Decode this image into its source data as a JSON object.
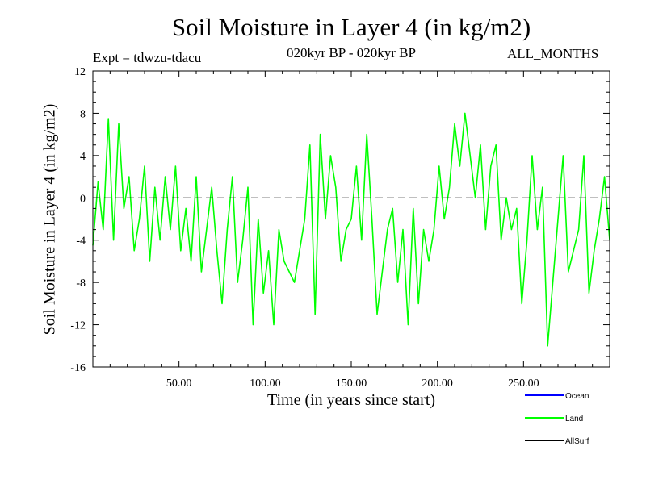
{
  "chart_data": {
    "type": "line",
    "title": "Soil Moisture in Layer 4 (in kg/m2)",
    "subtitle_left": "Expt = tdwzu-tdacu",
    "subtitle_center": "020kyr BP - 020kyr BP",
    "subtitle_right": "ALL_MONTHS",
    "xlabel": "Time (in years since start)",
    "ylabel": "Soil Moisture in Layer 4 (in kg/m2)",
    "xlim": [
      0,
      300
    ],
    "ylim": [
      -16,
      12
    ],
    "x_ticks": [
      50,
      100,
      150,
      200,
      250
    ],
    "x_tick_labels": [
      "50.00",
      "100.00",
      "150.00",
      "200.00",
      "250.00"
    ],
    "y_ticks": [
      -16,
      -12,
      -8,
      -4,
      0,
      4,
      8,
      12
    ],
    "y_tick_labels": [
      "-16",
      "-12",
      "-8",
      "-4",
      "0",
      "4",
      "8",
      "12"
    ],
    "zero_line": "dashed",
    "grid": false,
    "legend_position": "bottom-right",
    "series": [
      {
        "name": "Ocean",
        "color": "#0000ff",
        "values": []
      },
      {
        "name": "Land",
        "color": "#00ff00",
        "x": [
          0,
          3,
          6,
          9,
          12,
          15,
          18,
          21,
          24,
          27,
          30,
          33,
          36,
          39,
          42,
          45,
          48,
          51,
          54,
          57,
          60,
          63,
          66,
          69,
          72,
          75,
          78,
          81,
          84,
          87,
          90,
          93,
          96,
          99,
          102,
          105,
          108,
          111,
          114,
          117,
          120,
          123,
          126,
          129,
          132,
          135,
          138,
          141,
          144,
          147,
          150,
          153,
          156,
          159,
          162,
          165,
          168,
          171,
          174,
          177,
          180,
          183,
          186,
          189,
          192,
          195,
          198,
          201,
          204,
          207,
          210,
          213,
          216,
          219,
          222,
          225,
          228,
          231,
          234,
          237,
          240,
          243,
          246,
          249,
          252,
          255,
          258,
          261,
          264,
          267,
          270,
          273,
          276,
          279,
          282,
          285,
          288,
          291,
          294,
          297,
          300
        ],
        "values": [
          -4.5,
          1.5,
          -3,
          7.5,
          -4,
          7,
          -1,
          2,
          -5,
          -2,
          3,
          -6,
          1,
          -4,
          2,
          -3,
          3,
          -5,
          -1,
          -6,
          2,
          -7,
          -3,
          1,
          -5,
          -10,
          -3,
          2,
          -8,
          -4,
          1,
          -12,
          -2,
          -9,
          -5,
          -12,
          -3,
          -6,
          -7,
          -8,
          -5,
          -2,
          5,
          -11,
          6,
          -2,
          4,
          1,
          -6,
          -3,
          -2,
          3,
          -4,
          6,
          -2,
          -11,
          -7,
          -3,
          -1,
          -8,
          -3,
          -12,
          -1,
          -10,
          -3,
          -6,
          -3,
          3,
          -2,
          1,
          7,
          3,
          8,
          4,
          0,
          5,
          -3,
          3,
          5,
          -4,
          0,
          -3,
          -1,
          -10,
          -4,
          4,
          -3,
          1,
          -14,
          -8,
          -2,
          4,
          -7,
          -5,
          -3,
          4,
          -9,
          -5,
          -2,
          2,
          -4
        ]
      },
      {
        "name": "AllSurf",
        "color": "#000000",
        "values": []
      }
    ]
  }
}
